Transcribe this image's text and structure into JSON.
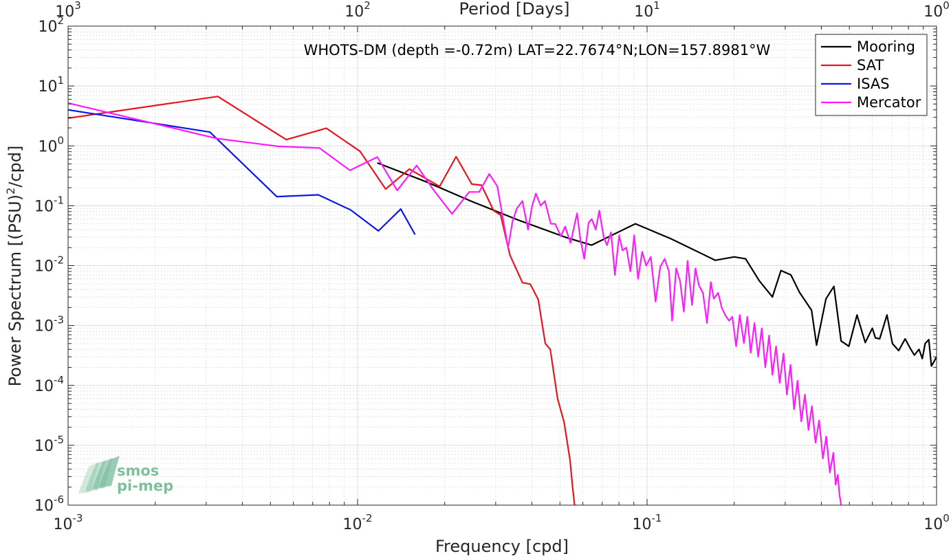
{
  "chart_data": {
    "type": "line",
    "title": "",
    "annotation": "WHOTS-DM (depth =-0.72m) LAT=22.7674°N;LON=157.8981°W",
    "xlabel": "Frequency [cpd]",
    "ylabel_base": "Power Spectrum [(PSU)",
    "ylabel_exp": "2",
    "ylabel_tail": "/cpd]",
    "top_xlabel": "Period [Days]",
    "xscale": "log",
    "yscale": "log",
    "xlim": [
      0.001,
      1
    ],
    "ylim": [
      1e-06,
      100
    ],
    "grid": true,
    "minor_grid": true,
    "legend_position": "top-right",
    "x_ticks": [
      {
        "value": 0.001,
        "base": "10",
        "exp": "-3"
      },
      {
        "value": 0.01,
        "base": "10",
        "exp": "-2"
      },
      {
        "value": 0.1,
        "base": "10",
        "exp": "-1"
      },
      {
        "value": 1,
        "base": "10",
        "exp": "0"
      }
    ],
    "top_ticks": [
      {
        "value": 0.001,
        "base": "10",
        "exp": "3"
      },
      {
        "value": 0.01,
        "base": "10",
        "exp": "2"
      },
      {
        "value": 0.1,
        "base": "10",
        "exp": "1"
      },
      {
        "value": 1,
        "base": "10",
        "exp": "0"
      }
    ],
    "y_ticks": [
      {
        "value": 100,
        "base": "10",
        "exp": "2"
      },
      {
        "value": 10,
        "base": "10",
        "exp": "1"
      },
      {
        "value": 1,
        "base": "10",
        "exp": "0"
      },
      {
        "value": 0.1,
        "base": "10",
        "exp": "-1"
      },
      {
        "value": 0.01,
        "base": "10",
        "exp": "-2"
      },
      {
        "value": 0.001,
        "base": "10",
        "exp": "-3"
      },
      {
        "value": 0.0001,
        "base": "10",
        "exp": "-4"
      },
      {
        "value": 1e-05,
        "base": "10",
        "exp": "-5"
      },
      {
        "value": 1e-06,
        "base": "10",
        "exp": "-6"
      }
    ],
    "series": [
      {
        "name": "Mooring",
        "color": "#000000",
        "points": [
          [
            0.0117,
            0.52
          ],
          [
            0.0173,
            0.25
          ],
          [
            0.0246,
            0.12
          ],
          [
            0.0358,
            0.058
          ],
          [
            0.052,
            0.03
          ],
          [
            0.0643,
            0.022
          ],
          [
            0.0911,
            0.05
          ],
          [
            0.121,
            0.028
          ],
          [
            0.172,
            0.0123
          ],
          [
            0.2,
            0.014
          ],
          [
            0.219,
            0.013
          ],
          [
            0.244,
            0.0056
          ],
          [
            0.271,
            0.003
          ],
          [
            0.29,
            0.0083
          ],
          [
            0.314,
            0.007
          ],
          [
            0.336,
            0.0036
          ],
          [
            0.37,
            0.0018
          ],
          [
            0.385,
            0.00047
          ],
          [
            0.415,
            0.0028
          ],
          [
            0.442,
            0.0045
          ],
          [
            0.468,
            0.00055
          ],
          [
            0.498,
            0.00045
          ],
          [
            0.531,
            0.0015
          ],
          [
            0.567,
            0.00052
          ],
          [
            0.6,
            0.0009
          ],
          [
            0.615,
            0.00062
          ],
          [
            0.636,
            0.0006
          ],
          [
            0.674,
            0.0015
          ],
          [
            0.704,
            0.0005
          ],
          [
            0.74,
            0.00038
          ],
          [
            0.779,
            0.0006
          ],
          [
            0.81,
            0.00042
          ],
          [
            0.838,
            0.00032
          ],
          [
            0.87,
            0.0004
          ],
          [
            0.893,
            0.00028
          ],
          [
            0.913,
            0.0005
          ],
          [
            0.94,
            0.00058
          ],
          [
            0.96,
            0.00021
          ],
          [
            0.98,
            0.00025
          ],
          [
            1.0,
            0.0003
          ]
        ]
      },
      {
        "name": "SAT",
        "color": "#e8141c",
        "points": [
          [
            0.001,
            2.9
          ],
          [
            0.00329,
            6.7
          ],
          [
            0.00567,
            1.27
          ],
          [
            0.0078,
            1.97
          ],
          [
            0.0102,
            0.81
          ],
          [
            0.0125,
            0.19
          ],
          [
            0.0151,
            0.41
          ],
          [
            0.0192,
            0.21
          ],
          [
            0.0219,
            0.66
          ],
          [
            0.0248,
            0.23
          ],
          [
            0.0268,
            0.22
          ],
          [
            0.0295,
            0.083
          ],
          [
            0.0312,
            0.07
          ],
          [
            0.0336,
            0.015
          ],
          [
            0.0371,
            0.0052
          ],
          [
            0.0395,
            0.0049
          ],
          [
            0.0421,
            0.0027
          ],
          [
            0.0445,
            0.0005
          ],
          [
            0.0463,
            0.0004
          ],
          [
            0.0491,
            6e-05
          ],
          [
            0.0517,
            2.4e-05
          ],
          [
            0.0542,
            5.6e-06
          ],
          [
            0.0553,
            2e-06
          ],
          [
            0.0562,
            1e-06
          ]
        ]
      },
      {
        "name": "ISAS",
        "color": "#0b17e6",
        "points": [
          [
            0.001,
            4.0
          ],
          [
            0.00309,
            1.7
          ],
          [
            0.00526,
            0.142
          ],
          [
            0.00732,
            0.152
          ],
          [
            0.00947,
            0.085
          ],
          [
            0.0118,
            0.038
          ],
          [
            0.0141,
            0.088
          ],
          [
            0.0158,
            0.033
          ]
        ]
      },
      {
        "name": "Mercator",
        "color": "#ff1aff",
        "points": [
          [
            0.001,
            5.2
          ],
          [
            0.00326,
            1.33
          ],
          [
            0.00533,
            0.98
          ],
          [
            0.00738,
            0.92
          ],
          [
            0.00941,
            0.39
          ],
          [
            0.0117,
            0.65
          ],
          [
            0.0137,
            0.18
          ],
          [
            0.016,
            0.47
          ],
          [
            0.0182,
            0.19
          ],
          [
            0.0212,
            0.073
          ],
          [
            0.0243,
            0.17
          ],
          [
            0.0263,
            0.17
          ],
          [
            0.0285,
            0.34
          ],
          [
            0.0304,
            0.21
          ],
          [
            0.0331,
            0.02
          ],
          [
            0.0343,
            0.055
          ],
          [
            0.0355,
            0.09
          ],
          [
            0.0371,
            0.12
          ],
          [
            0.0388,
            0.04
          ],
          [
            0.0401,
            0.1
          ],
          [
            0.0413,
            0.16
          ],
          [
            0.0429,
            0.1
          ],
          [
            0.0444,
            0.12
          ],
          [
            0.0465,
            0.05
          ],
          [
            0.0481,
            0.05
          ],
          [
            0.0504,
            0.031
          ],
          [
            0.0521,
            0.045
          ],
          [
            0.0544,
            0.024
          ],
          [
            0.0573,
            0.075
          ],
          [
            0.0588,
            0.028
          ],
          [
            0.0607,
            0.013
          ],
          [
            0.0628,
            0.052
          ],
          [
            0.0644,
            0.06
          ],
          [
            0.0665,
            0.04
          ],
          [
            0.0684,
            0.083
          ],
          [
            0.0708,
            0.03
          ],
          [
            0.0727,
            0.022
          ],
          [
            0.0751,
            0.036
          ],
          [
            0.0774,
            0.007
          ],
          [
            0.0801,
            0.032
          ],
          [
            0.0822,
            0.018
          ],
          [
            0.0848,
            0.02
          ],
          [
            0.0876,
            0.008
          ],
          [
            0.0903,
            0.032
          ],
          [
            0.0931,
            0.006
          ],
          [
            0.0962,
            0.017
          ],
          [
            0.0993,
            0.01
          ],
          [
            0.103,
            0.014
          ],
          [
            0.107,
            0.0025
          ],
          [
            0.111,
            0.0095
          ],
          [
            0.115,
            0.013
          ],
          [
            0.119,
            0.008
          ],
          [
            0.122,
            0.0012
          ],
          [
            0.126,
            0.009
          ],
          [
            0.13,
            0.0055
          ],
          [
            0.134,
            0.0017
          ],
          [
            0.138,
            0.012
          ],
          [
            0.143,
            0.0022
          ],
          [
            0.147,
            0.009
          ],
          [
            0.151,
            0.0047
          ],
          [
            0.156,
            0.0035
          ],
          [
            0.161,
            0.0011
          ],
          [
            0.166,
            0.0053
          ],
          [
            0.17,
            0.0028
          ],
          [
            0.176,
            0.0035
          ],
          [
            0.181,
            0.002
          ],
          [
            0.186,
            0.0015
          ],
          [
            0.192,
            0.0012
          ],
          [
            0.197,
            0.0014
          ],
          [
            0.203,
            0.00045
          ],
          [
            0.209,
            0.0015
          ],
          [
            0.216,
            0.00051
          ],
          [
            0.222,
            0.0014
          ],
          [
            0.228,
            0.00035
          ],
          [
            0.235,
            0.0011
          ],
          [
            0.242,
            0.0003
          ],
          [
            0.249,
            0.0009
          ],
          [
            0.256,
            0.0002
          ],
          [
            0.264,
            0.00068
          ],
          [
            0.271,
            0.00015
          ],
          [
            0.279,
            0.00045
          ],
          [
            0.287,
            0.00011
          ],
          [
            0.296,
            0.00034
          ],
          [
            0.304,
            7e-05
          ],
          [
            0.313,
            0.00022
          ],
          [
            0.322,
            4e-05
          ],
          [
            0.331,
            0.00012
          ],
          [
            0.341,
            2.5e-05
          ],
          [
            0.351,
            7e-05
          ],
          [
            0.361,
            1.8e-05
          ],
          [
            0.371,
            4.5e-05
          ],
          [
            0.382,
            1.1e-05
          ],
          [
            0.393,
            2.6e-05
          ],
          [
            0.405,
            6e-06
          ],
          [
            0.416,
            1.4e-05
          ],
          [
            0.428,
            3.5e-06
          ],
          [
            0.44,
            7.5e-06
          ],
          [
            0.448,
            2.2e-06
          ],
          [
            0.456,
            3.2e-06
          ],
          [
            0.462,
            1.5e-06
          ],
          [
            0.468,
            1e-06
          ]
        ]
      }
    ]
  },
  "watermark": {
    "line1": "smos",
    "line2": "pi-mep",
    "color": "#7fbf9f"
  }
}
